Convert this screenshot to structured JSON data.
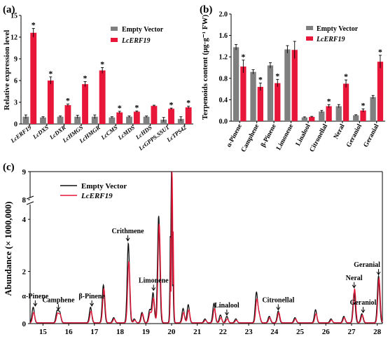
{
  "panel_a": {
    "panel_label": "(a)",
    "ylabel": "Relative expression level",
    "legend": [
      "Empty Vector",
      "LcERF19"
    ],
    "colors": {
      "empty": "#7f7f7f",
      "lcerf": "#e8173a"
    }
  },
  "panel_b": {
    "panel_label": "(b)",
    "ylabel": "Terpenoids content (μg·g⁻¹ FW)",
    "legend": [
      "Empty Vector",
      "LcERF19"
    ],
    "colors": {
      "empty": "#7f7f7f",
      "lcerf": "#e8173a"
    }
  },
  "panel_c": {
    "panel_label": "(c)",
    "ylabel": "Abundance (× 1000,000)",
    "legend": [
      "Empty Vector",
      "LcERF19"
    ],
    "colors": {
      "empty": "#111111",
      "lcerf": "#e8173a"
    }
  },
  "chart_data": [
    {
      "type": "bar",
      "categories": [
        "LcERF19",
        "LcDXS",
        "LcDXR",
        "LcHMGS",
        "LcHMGR",
        "LcCMS",
        "LcMDS",
        "LcHDS",
        "LcGPPS.SSU1",
        "LcTPS42"
      ],
      "ylabel": "Relative expression level",
      "ylim": [
        0,
        15
      ],
      "yticks": [
        0,
        3,
        6,
        9,
        12,
        15
      ],
      "series": [
        {
          "name": "Empty Vector",
          "values": [
            1.0,
            0.9,
            1.0,
            1.0,
            1.0,
            0.9,
            1.0,
            1.0,
            0.6,
            0.7
          ],
          "errors": [
            0.25,
            0.1,
            0.1,
            0.2,
            0.25,
            0.1,
            0.1,
            0.1,
            0.3,
            0.3
          ]
        },
        {
          "name": "LcERF19",
          "values": [
            12.6,
            6.0,
            2.6,
            5.5,
            7.4,
            1.6,
            1.7,
            2.5,
            2.1,
            2.3
          ],
          "errors": [
            0.6,
            0.5,
            0.15,
            0.35,
            0.4,
            0.15,
            0.1,
            0.1,
            0.1,
            0.15
          ]
        }
      ],
      "significant": [
        true,
        true,
        true,
        true,
        true,
        true,
        true,
        false,
        true,
        true
      ],
      "legend_position": "top-right"
    },
    {
      "type": "bar",
      "categories": [
        "α-Pinene",
        "Camphene",
        "β-Pinene",
        "Limonene",
        "Linalool",
        "Citronellal",
        "Neral",
        "Geraniol",
        "Geranial"
      ],
      "ylabel": "Terpenoids content (μg·g⁻¹ FW)",
      "ylim": [
        0,
        2.0
      ],
      "yticks": [
        0.0,
        0.4,
        0.8,
        1.2,
        1.6,
        2.0
      ],
      "series": [
        {
          "name": "Empty Vector",
          "values": [
            1.38,
            0.92,
            1.04,
            1.34,
            0.07,
            0.18,
            0.28,
            0.11,
            0.45
          ],
          "errors": [
            0.05,
            0.04,
            0.05,
            0.07,
            0.01,
            0.02,
            0.03,
            0.01,
            0.03
          ]
        },
        {
          "name": "LcERF19",
          "values": [
            1.02,
            0.64,
            0.71,
            1.33,
            0.08,
            0.28,
            0.7,
            0.2,
            1.11
          ],
          "errors": [
            0.12,
            0.07,
            0.07,
            0.16,
            0.01,
            0.03,
            0.07,
            0.03,
            0.12
          ]
        }
      ],
      "significant": [
        true,
        true,
        true,
        false,
        false,
        true,
        true,
        true,
        true
      ],
      "legend_position": "top-right"
    },
    {
      "type": "line",
      "ylabel": "Abundance (× 1000,000)",
      "xlim": [
        14.5,
        28.2
      ],
      "xticks": [
        15,
        16,
        17,
        18,
        19,
        20,
        21,
        22,
        23,
        24,
        25,
        26,
        27,
        28
      ],
      "ylim": [
        0,
        9
      ],
      "yticks": [
        0,
        2,
        4,
        8,
        9
      ],
      "y_break": [
        4.3,
        8
      ],
      "peaks": {
        "Empty Vector": [
          [
            14.62,
            0.6
          ],
          [
            15.55,
            0.45
          ],
          [
            15.65,
            0.4
          ],
          [
            16.85,
            0.6
          ],
          [
            17.35,
            1.45
          ],
          [
            17.75,
            0.2
          ],
          [
            18.32,
            3.05
          ],
          [
            18.55,
            0.15
          ],
          [
            18.85,
            0.4
          ],
          [
            19.15,
            0.5
          ],
          [
            19.28,
            1.15
          ],
          [
            19.5,
            4.1
          ],
          [
            20.0,
            9.0
          ],
          [
            20.45,
            0.55
          ],
          [
            20.65,
            0.7
          ],
          [
            21.3,
            0.15
          ],
          [
            21.65,
            0.75
          ],
          [
            21.9,
            0.3
          ],
          [
            22.15,
            0.25
          ],
          [
            22.5,
            0.15
          ],
          [
            23.3,
            1.15
          ],
          [
            23.4,
            0.35
          ],
          [
            23.8,
            0.25
          ],
          [
            24.15,
            0.45
          ],
          [
            24.8,
            0.2
          ],
          [
            25.6,
            0.5
          ],
          [
            26.2,
            0.15
          ],
          [
            26.7,
            0.25
          ],
          [
            27.1,
            1.15
          ],
          [
            27.4,
            0.35
          ],
          [
            28.05,
            1.8
          ]
        ],
        "LcERF19": [
          [
            14.62,
            0.4
          ],
          [
            15.55,
            0.35
          ],
          [
            15.65,
            0.3
          ],
          [
            16.85,
            0.45
          ],
          [
            17.35,
            1.3
          ],
          [
            17.75,
            0.15
          ],
          [
            18.32,
            2.35
          ],
          [
            18.55,
            0.1
          ],
          [
            18.85,
            0.35
          ],
          [
            19.15,
            0.4
          ],
          [
            19.28,
            0.95
          ],
          [
            19.5,
            3.8
          ],
          [
            20.0,
            9.0
          ],
          [
            20.45,
            0.4
          ],
          [
            20.65,
            0.5
          ],
          [
            21.3,
            0.1
          ],
          [
            21.65,
            0.55
          ],
          [
            21.9,
            0.2
          ],
          [
            22.15,
            0.15
          ],
          [
            22.5,
            0.1
          ],
          [
            23.3,
            0.9
          ],
          [
            23.4,
            0.25
          ],
          [
            23.8,
            0.2
          ],
          [
            24.15,
            0.4
          ],
          [
            24.8,
            0.15
          ],
          [
            25.6,
            0.35
          ],
          [
            26.2,
            0.1
          ],
          [
            26.7,
            0.2
          ],
          [
            27.1,
            1.3
          ],
          [
            27.4,
            0.3
          ],
          [
            28.05,
            1.7
          ]
        ]
      },
      "annotations": [
        {
          "text": "α-Pinene",
          "x": 14.7,
          "y": 0.65
        },
        {
          "text": "Camphene",
          "x": 15.6,
          "y": 0.5
        },
        {
          "text": "β-Pinene",
          "x": 16.9,
          "y": 0.65
        },
        {
          "text": "Crithmene",
          "x": 18.3,
          "y": 3.15
        },
        {
          "text": "Limonene",
          "x": 19.3,
          "y": 1.25
        },
        {
          "text": "Linalool",
          "x": 22.15,
          "y": 0.3
        },
        {
          "text": "Citronellal",
          "x": 24.15,
          "y": 0.5
        },
        {
          "text": "Neral",
          "x": 27.1,
          "y": 1.35
        },
        {
          "text": "Geraniol",
          "x": 27.45,
          "y": 0.4
        },
        {
          "text": "Geranial",
          "x": 28.05,
          "y": 1.85
        }
      ],
      "legend_position": "top-left"
    }
  ]
}
